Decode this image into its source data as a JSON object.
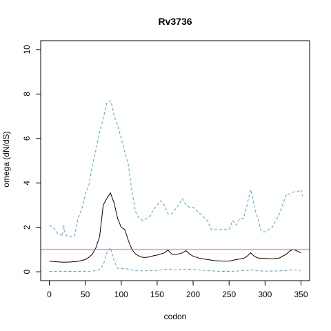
{
  "chart_data": {
    "type": "line",
    "title": "Rv3736",
    "xlabel": "codon",
    "ylabel": "omega (dN/dS)",
    "xlim": [
      -12,
      362
    ],
    "ylim": [
      -0.4,
      10.4
    ],
    "xticks": [
      0,
      50,
      100,
      150,
      200,
      250,
      300,
      350
    ],
    "yticks": [
      0,
      2,
      4,
      6,
      8,
      10
    ],
    "reference_line": {
      "y": 1,
      "color": "#cc66cc"
    },
    "series": [
      {
        "style": "solid",
        "color": "#000000",
        "x": [
          0,
          10,
          20,
          30,
          40,
          50,
          55,
          60,
          65,
          70,
          75,
          80,
          85,
          90,
          95,
          100,
          105,
          110,
          115,
          120,
          125,
          130,
          135,
          140,
          145,
          150,
          155,
          160,
          165,
          170,
          175,
          180,
          185,
          190,
          195,
          200,
          210,
          220,
          230,
          240,
          250,
          260,
          270,
          275,
          280,
          285,
          290,
          300,
          310,
          320,
          330,
          335,
          340,
          350
        ],
        "y": [
          0.48,
          0.45,
          0.43,
          0.44,
          0.47,
          0.55,
          0.65,
          0.8,
          1.1,
          1.6,
          3.0,
          3.3,
          3.55,
          3.1,
          2.4,
          2.0,
          1.9,
          1.4,
          1.0,
          0.8,
          0.7,
          0.65,
          0.65,
          0.68,
          0.72,
          0.75,
          0.8,
          0.85,
          0.98,
          0.8,
          0.78,
          0.8,
          0.85,
          0.95,
          0.8,
          0.7,
          0.6,
          0.55,
          0.5,
          0.48,
          0.48,
          0.55,
          0.6,
          0.7,
          0.85,
          0.7,
          0.62,
          0.6,
          0.58,
          0.62,
          0.8,
          0.95,
          1.0,
          0.85
        ]
      },
      {
        "style": "dashed",
        "color": "#4aa3df",
        "x": [
          0,
          10,
          20,
          30,
          40,
          50,
          60,
          65,
          70,
          75,
          80,
          85,
          90,
          95,
          100,
          110,
          120,
          130,
          140,
          150,
          155,
          160,
          165,
          170,
          175,
          180,
          190,
          200,
          210,
          220,
          230,
          240,
          250,
          260,
          270,
          275,
          280,
          285,
          290,
          300,
          310,
          320,
          330,
          340,
          350
        ],
        "y": [
          0.02,
          0.02,
          0.02,
          0.02,
          0.02,
          0.02,
          0.03,
          0.05,
          0.1,
          0.3,
          0.85,
          1.1,
          0.5,
          0.15,
          0.15,
          0.12,
          0.05,
          0.04,
          0.05,
          0.06,
          0.08,
          0.1,
          0.12,
          0.1,
          0.08,
          0.09,
          0.12,
          0.1,
          0.08,
          0.05,
          0.03,
          0.02,
          0.02,
          0.03,
          0.05,
          0.06,
          0.1,
          0.05,
          0.04,
          0.03,
          0.03,
          0.04,
          0.06,
          0.08,
          0.06
        ]
      },
      {
        "style": "dashed",
        "color": "#4aa3df",
        "x": [
          0,
          5,
          8,
          12,
          15,
          18,
          20,
          22,
          25,
          30,
          35,
          40,
          45,
          50,
          55,
          60,
          65,
          70,
          75,
          80,
          85,
          88,
          90,
          95,
          100,
          105,
          110,
          115,
          120,
          125,
          130,
          140,
          145,
          150,
          155,
          160,
          165,
          170,
          175,
          180,
          185,
          190,
          195,
          200,
          210,
          220,
          225,
          230,
          240,
          250,
          255,
          260,
          265,
          270,
          275,
          280,
          283,
          285,
          290,
          295,
          300,
          310,
          320,
          330,
          335,
          340,
          345,
          350,
          352
        ],
        "y": [
          2.1,
          2.0,
          1.9,
          1.7,
          1.7,
          1.6,
          2.1,
          1.7,
          1.6,
          1.6,
          1.6,
          2.4,
          2.8,
          3.5,
          3.9,
          4.8,
          5.5,
          6.3,
          6.9,
          7.6,
          7.7,
          7.4,
          7.0,
          6.6,
          6.0,
          5.4,
          4.8,
          3.6,
          2.7,
          2.4,
          2.3,
          2.5,
          2.8,
          3.0,
          3.2,
          3.0,
          2.6,
          2.6,
          2.8,
          3.0,
          3.3,
          3.0,
          2.9,
          2.9,
          2.6,
          2.3,
          1.9,
          1.9,
          1.9,
          1.9,
          2.3,
          2.1,
          2.4,
          2.4,
          3.0,
          3.7,
          3.3,
          2.9,
          2.4,
          1.8,
          1.8,
          2.0,
          2.6,
          3.5,
          3.5,
          3.6,
          3.6,
          3.7,
          3.4
        ]
      }
    ]
  }
}
